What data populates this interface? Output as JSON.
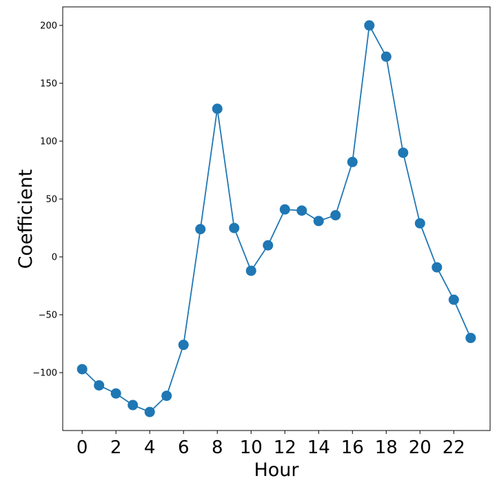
{
  "chart_data": {
    "type": "line",
    "xlabel": "Hour",
    "ylabel": "Coefficient",
    "x": [
      0,
      1,
      2,
      3,
      4,
      5,
      6,
      7,
      8,
      9,
      10,
      11,
      12,
      13,
      14,
      15,
      16,
      17,
      18,
      19,
      20,
      21,
      22,
      23
    ],
    "series": [
      {
        "values": [
          -97,
          -111,
          -118,
          -128,
          -134,
          -120,
          -76,
          24,
          128,
          25,
          -12,
          10,
          41,
          40,
          31,
          36,
          82,
          200,
          173,
          90,
          29,
          -9,
          -37,
          -70
        ],
        "color": "#1f77b4"
      }
    ],
    "xticks": [
      0,
      2,
      4,
      6,
      8,
      10,
      12,
      14,
      16,
      18,
      20,
      22
    ],
    "xtick_labels": [
      "0",
      "2",
      "4",
      "6",
      "8",
      "10",
      "12",
      "14",
      "16",
      "18",
      "20",
      "22"
    ],
    "yticks": [
      -100,
      -50,
      0,
      50,
      100,
      150,
      200
    ],
    "ytick_labels": [
      "−100",
      "−50",
      "0",
      "50",
      "100",
      "150",
      "200"
    ],
    "xlim": [
      -1.15,
      24.15
    ],
    "ylim": [
      -150,
      216
    ],
    "grid": false,
    "legend": false
  }
}
